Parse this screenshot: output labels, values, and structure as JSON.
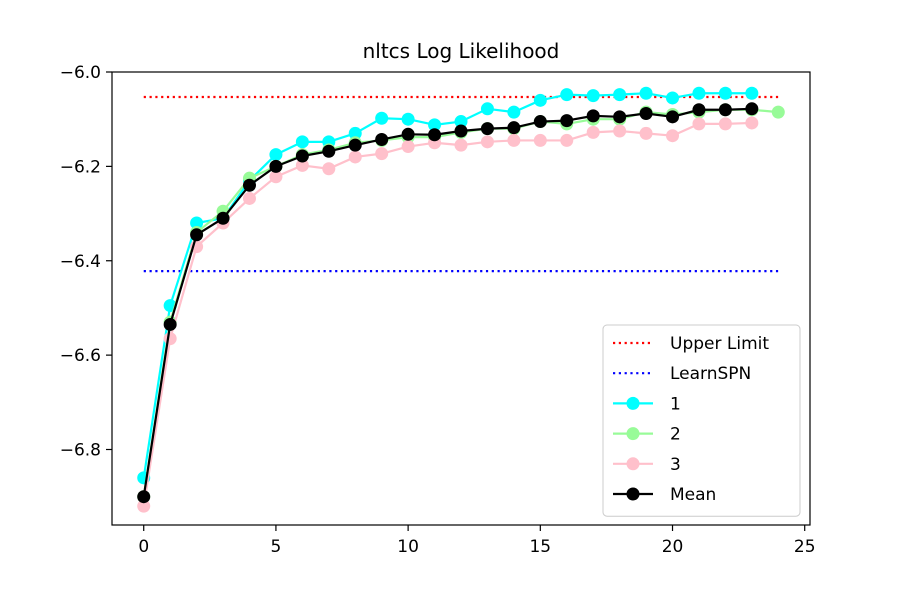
{
  "chart_data": {
    "type": "line",
    "title": "nltcs Log Likelihood",
    "xlabel": "",
    "ylabel": "",
    "xlim": [
      -1.2,
      25.2
    ],
    "ylim": [
      -6.96,
      -6.0
    ],
    "xticks": [
      0,
      5,
      10,
      15,
      20,
      25
    ],
    "xtick_labels": [
      "0",
      "5",
      "10",
      "15",
      "20",
      "25"
    ],
    "yticks": [
      -6.0,
      -6.2,
      -6.4,
      -6.6,
      -6.8
    ],
    "ytick_labels": [
      "−6.0",
      "−6.2",
      "−6.4",
      "−6.6",
      "−6.8"
    ],
    "grid": false,
    "legend_position": "lower-right",
    "reference_lines": [
      {
        "name": "Upper Limit",
        "y": -6.053,
        "x_range": [
          0,
          24
        ],
        "color": "#ff0000",
        "style": "dotted"
      },
      {
        "name": "LearnSPN",
        "y": -6.422,
        "x_range": [
          0,
          24
        ],
        "color": "#0000ff",
        "style": "dotted"
      }
    ],
    "series": [
      {
        "name": "1",
        "color": "#00ffff",
        "x": [
          0,
          1,
          2,
          3,
          4,
          5,
          6,
          7,
          8,
          9,
          10,
          11,
          12,
          13,
          14,
          15,
          16,
          17,
          18,
          19,
          20,
          21,
          22,
          23
        ],
        "values": [
          -6.86,
          -6.495,
          -6.32,
          -6.31,
          -6.23,
          -6.175,
          -6.148,
          -6.148,
          -6.13,
          -6.098,
          -6.1,
          -6.112,
          -6.105,
          -6.078,
          -6.085,
          -6.06,
          -6.048,
          -6.05,
          -6.048,
          -6.045,
          -6.055,
          -6.045,
          -6.045,
          -6.045
        ]
      },
      {
        "name": "2",
        "color": "#98fb98",
        "x": [
          0,
          1,
          2,
          3,
          4,
          5,
          6,
          7,
          8,
          9,
          10,
          11,
          12,
          13,
          14,
          15,
          16,
          17,
          18,
          19,
          20,
          21,
          22,
          23,
          24
        ],
        "values": [
          -6.9,
          -6.53,
          -6.34,
          -6.295,
          -6.225,
          -6.2,
          -6.175,
          -6.165,
          -6.15,
          -6.145,
          -6.138,
          -6.138,
          -6.128,
          -6.12,
          -6.12,
          -6.105,
          -6.11,
          -6.1,
          -6.1,
          -6.085,
          -6.09,
          -6.085,
          -6.08,
          -6.08,
          -6.085
        ]
      },
      {
        "name": "3",
        "color": "#ffc0cb",
        "x": [
          0,
          1,
          2,
          3,
          4,
          5,
          6,
          7,
          8,
          9,
          10,
          11,
          12,
          13,
          14,
          15,
          16,
          17,
          18,
          19,
          20,
          21,
          22,
          23
        ],
        "values": [
          -6.92,
          -6.565,
          -6.37,
          -6.32,
          -6.268,
          -6.222,
          -6.198,
          -6.205,
          -6.18,
          -6.173,
          -6.158,
          -6.15,
          -6.155,
          -6.148,
          -6.145,
          -6.145,
          -6.145,
          -6.128,
          -6.125,
          -6.13,
          -6.135,
          -6.11,
          -6.11,
          -6.108
        ]
      },
      {
        "name": "Mean",
        "color": "#000000",
        "x": [
          0,
          1,
          2,
          3,
          4,
          5,
          6,
          7,
          8,
          9,
          10,
          11,
          12,
          13,
          14,
          15,
          16,
          17,
          18,
          19,
          20,
          21,
          22,
          23
        ],
        "values": [
          -6.9,
          -6.535,
          -6.345,
          -6.31,
          -6.24,
          -6.2,
          -6.178,
          -6.168,
          -6.155,
          -6.143,
          -6.132,
          -6.133,
          -6.125,
          -6.12,
          -6.118,
          -6.105,
          -6.103,
          -6.093,
          -6.095,
          -6.088,
          -6.095,
          -6.08,
          -6.08,
          -6.078
        ]
      }
    ]
  }
}
